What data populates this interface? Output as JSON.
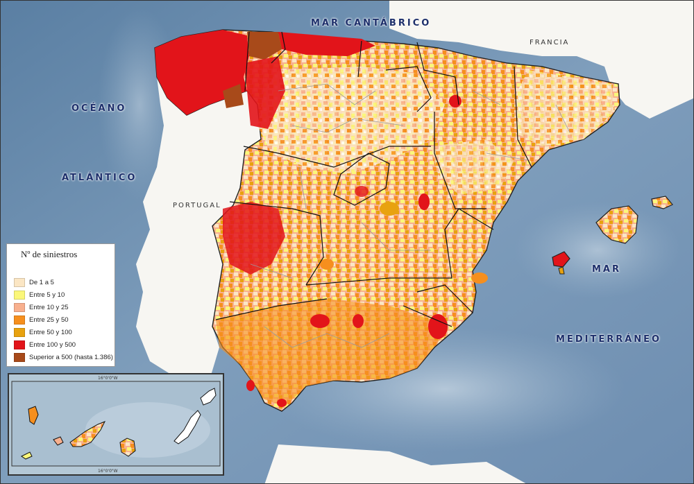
{
  "labels": {
    "mar_cantabrico": "MAR CANTÁBRICO",
    "francia": "FRANCIA",
    "oceano": "OCÉANO",
    "atlantico": "ATLÁNTICO",
    "portugal": "PORTUGAL",
    "mar": "MAR",
    "mediterraneo": "MEDITERRÁNEO"
  },
  "legend": {
    "title": "Nº de siniestros",
    "items": [
      {
        "label": "De 1 a 5",
        "color": "#fbe6c4"
      },
      {
        "label": "Entre 5 y 10",
        "color": "#fbf77a"
      },
      {
        "label": "Entre 10 y 25",
        "color": "#f8b08e"
      },
      {
        "label": "Entre 25 y 50",
        "color": "#f68f1e"
      },
      {
        "label": "Entre 50 y 100",
        "color": "#e8a20f"
      },
      {
        "label": "Entre 100 y 500",
        "color": "#e2141a"
      },
      {
        "label": "Superior a 500 (hasta 1.386)",
        "color": "#a84a1a"
      }
    ]
  },
  "inset": {
    "coord_top": "16°0'0\"W",
    "coord_bottom": "16°0'0\"W"
  }
}
